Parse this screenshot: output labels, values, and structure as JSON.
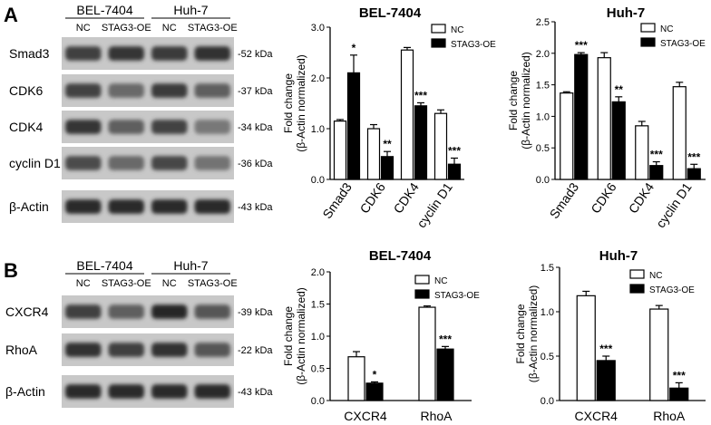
{
  "panel_a": {
    "letter": "A",
    "blot": {
      "cell_lines": [
        "BEL-7404",
        "Huh-7"
      ],
      "lanes": [
        "NC",
        "STAG3-OE",
        "NC",
        "STAG3-OE"
      ],
      "rows": [
        {
          "name": "Smad3",
          "kda": "52 kDa",
          "intensity": [
            0.72,
            0.78,
            0.74,
            0.8
          ]
        },
        {
          "name": "CDK6",
          "kda": "37 kDa",
          "intensity": [
            0.7,
            0.5,
            0.75,
            0.55
          ]
        },
        {
          "name": "CDK4",
          "kda": "34 kDa",
          "intensity": [
            0.78,
            0.55,
            0.7,
            0.42
          ]
        },
        {
          "name": "cyclin D1",
          "kda": "36 kDa",
          "intensity": [
            0.66,
            0.5,
            0.68,
            0.45
          ]
        },
        {
          "name": "β-Actin",
          "kda": "43 kDa",
          "intensity": [
            0.82,
            0.82,
            0.82,
            0.82
          ]
        }
      ]
    }
  },
  "panel_b": {
    "letter": "B",
    "blot": {
      "cell_lines": [
        "BEL-7404",
        "Huh-7"
      ],
      "lanes": [
        "NC",
        "STAG3-OE",
        "NC",
        "STAG3-OE"
      ],
      "rows": [
        {
          "name": "CXCR4",
          "kda": "39 kDa",
          "intensity": [
            0.72,
            0.55,
            0.85,
            0.6
          ]
        },
        {
          "name": "RhoA",
          "kda": "22 kDa",
          "intensity": [
            0.8,
            0.72,
            0.8,
            0.6
          ]
        },
        {
          "name": "β-Actin",
          "kda": "43 kDa",
          "intensity": [
            0.82,
            0.82,
            0.82,
            0.82
          ]
        }
      ]
    }
  },
  "legend": {
    "nc": "NC",
    "oe": "STAG3-OE"
  },
  "colors": {
    "nc_fill": "#ffffff",
    "oe_fill": "#000000",
    "blot_bg": "#c8c8c8"
  },
  "chart_data": [
    {
      "type": "bar",
      "title": "BEL-7404",
      "ylabel": [
        "Fold change",
        "(β-Actin normalized)"
      ],
      "categories": [
        "Smad3",
        "CDK6",
        "CDK4",
        "cyclin D1"
      ],
      "ylim": [
        0,
        3
      ],
      "yticks": [
        "0.0",
        "1.0",
        "2.0",
        "3.0"
      ],
      "legend_position": "top-right",
      "rotated_xticks": true,
      "series": [
        {
          "name": "NC",
          "values": [
            1.15,
            1.0,
            2.55,
            1.3
          ],
          "errors": [
            0.03,
            0.08,
            0.05,
            0.07
          ]
        },
        {
          "name": "STAG3-OE",
          "values": [
            2.1,
            0.45,
            1.45,
            0.3
          ],
          "errors": [
            0.35,
            0.1,
            0.06,
            0.12
          ]
        }
      ],
      "annotations": [
        "",
        "*",
        "",
        "**",
        "",
        "***",
        "",
        "***"
      ]
    },
    {
      "type": "bar",
      "title": "Huh-7",
      "ylabel": [
        "Fold change",
        "(β-Actin normalized)"
      ],
      "categories": [
        "Smad3",
        "CDK6",
        "CDK4",
        "cyclin D1"
      ],
      "ylim": [
        0,
        2.5
      ],
      "yticks": [
        "0.0",
        "0.5",
        "1.0",
        "1.5",
        "2.0",
        "2.5"
      ],
      "legend_position": "top-right",
      "rotated_xticks": true,
      "series": [
        {
          "name": "NC",
          "values": [
            1.37,
            1.93,
            0.85,
            1.47
          ],
          "errors": [
            0.02,
            0.08,
            0.07,
            0.07
          ]
        },
        {
          "name": "STAG3-OE",
          "values": [
            1.98,
            1.23,
            0.22,
            0.17
          ],
          "errors": [
            0.03,
            0.08,
            0.06,
            0.07
          ]
        }
      ],
      "annotations": [
        "",
        "***",
        "",
        "**",
        "",
        "***",
        "",
        "***"
      ]
    },
    {
      "type": "bar",
      "title": "BEL-7404",
      "ylabel": [
        "Fold change",
        "(β-Actin normalized)"
      ],
      "categories": [
        "CXCR4",
        "RhoA"
      ],
      "ylim": [
        0,
        2.0
      ],
      "yticks": [
        "0.0",
        "0.5",
        "1.0",
        "1.5",
        "2.0"
      ],
      "legend_position": "top-right",
      "rotated_xticks": false,
      "series": [
        {
          "name": "NC",
          "values": [
            0.68,
            1.45
          ],
          "errors": [
            0.08,
            0.02
          ]
        },
        {
          "name": "STAG3-OE",
          "values": [
            0.27,
            0.8
          ],
          "errors": [
            0.02,
            0.04
          ]
        }
      ],
      "annotations": [
        "",
        "*",
        "",
        "***"
      ]
    },
    {
      "type": "bar",
      "title": "Huh-7",
      "ylabel": [
        "Fold change",
        "(β-Actin normalized)"
      ],
      "categories": [
        "CXCR4",
        "RhoA"
      ],
      "ylim": [
        0,
        1.5
      ],
      "yticks": [
        "0.0",
        "0.5",
        "1.0",
        "1.5"
      ],
      "legend_position": "top-right",
      "rotated_xticks": false,
      "series": [
        {
          "name": "NC",
          "values": [
            1.18,
            1.03
          ],
          "errors": [
            0.05,
            0.04
          ]
        },
        {
          "name": "STAG3-OE",
          "values": [
            0.45,
            0.14
          ],
          "errors": [
            0.05,
            0.06
          ]
        }
      ],
      "annotations": [
        "",
        "***",
        "",
        "***"
      ]
    }
  ]
}
